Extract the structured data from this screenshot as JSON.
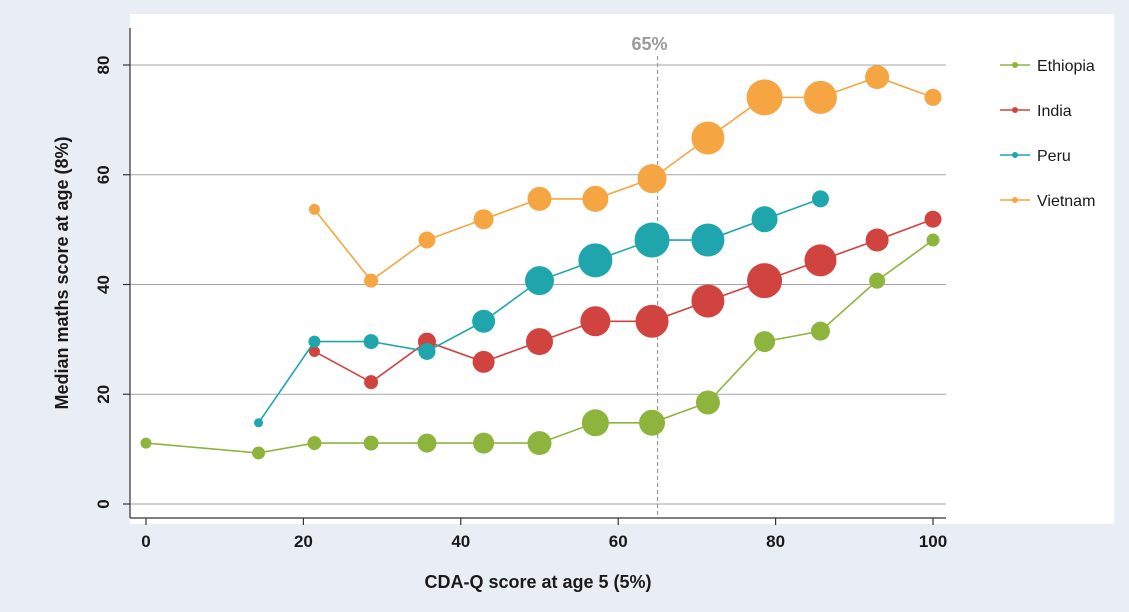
{
  "chart_data": {
    "type": "scatter",
    "xlabel": "CDA-Q score at age 5 (5%)",
    "ylabel": "Median maths score at age (8%)",
    "xlim": [
      0,
      100
    ],
    "ylim": [
      0,
      80
    ],
    "xticks": [
      "0",
      "20",
      "40",
      "60",
      "80",
      "100"
    ],
    "yticks": [
      "0",
      "20",
      "40",
      "60",
      "80"
    ],
    "grid": "horizontal",
    "legend_position": "right",
    "reference_line": {
      "x": 65,
      "label": "65%",
      "style": "dashed",
      "color": "#9a9a9a"
    },
    "series": [
      {
        "name": "Ethiopia",
        "color": "#8db53e",
        "points": [
          {
            "x": 0,
            "y": 11.1,
            "size": 1
          },
          {
            "x": 14.3,
            "y": 9.3,
            "size": 1.2
          },
          {
            "x": 21.4,
            "y": 11.1,
            "size": 1.3
          },
          {
            "x": 28.6,
            "y": 11.1,
            "size": 1.4
          },
          {
            "x": 35.7,
            "y": 11.1,
            "size": 1.8
          },
          {
            "x": 42.9,
            "y": 11.1,
            "size": 2.0
          },
          {
            "x": 50,
            "y": 11.1,
            "size": 2.3
          },
          {
            "x": 57.1,
            "y": 14.8,
            "size": 2.6
          },
          {
            "x": 64.3,
            "y": 14.8,
            "size": 2.5
          },
          {
            "x": 71.4,
            "y": 18.5,
            "size": 2.3
          },
          {
            "x": 78.6,
            "y": 29.6,
            "size": 2.0
          },
          {
            "x": 85.7,
            "y": 31.5,
            "size": 1.8
          },
          {
            "x": 92.9,
            "y": 40.7,
            "size": 1.5
          },
          {
            "x": 100,
            "y": 48.1,
            "size": 1.2
          }
        ]
      },
      {
        "name": "India",
        "color": "#d1433f",
        "points": [
          {
            "x": 21.4,
            "y": 27.8,
            "size": 1
          },
          {
            "x": 28.6,
            "y": 22.2,
            "size": 1.3
          },
          {
            "x": 35.7,
            "y": 29.6,
            "size": 1.7
          },
          {
            "x": 42.9,
            "y": 25.9,
            "size": 2.1
          },
          {
            "x": 50,
            "y": 29.6,
            "size": 2.6
          },
          {
            "x": 57.1,
            "y": 33.3,
            "size": 2.9
          },
          {
            "x": 64.3,
            "y": 33.3,
            "size": 3.2
          },
          {
            "x": 71.4,
            "y": 37.0,
            "size": 3.2
          },
          {
            "x": 78.6,
            "y": 40.7,
            "size": 3.4
          },
          {
            "x": 85.7,
            "y": 44.4,
            "size": 3.1
          },
          {
            "x": 92.9,
            "y": 48.1,
            "size": 2.2
          },
          {
            "x": 100,
            "y": 51.9,
            "size": 1.6
          }
        ]
      },
      {
        "name": "Peru",
        "color": "#1fa6ad",
        "points": [
          {
            "x": 14.3,
            "y": 14.8,
            "size": 0.8
          },
          {
            "x": 21.4,
            "y": 29.6,
            "size": 1.1
          },
          {
            "x": 28.6,
            "y": 29.6,
            "size": 1.4
          },
          {
            "x": 35.7,
            "y": 27.8,
            "size": 1.6
          },
          {
            "x": 42.9,
            "y": 33.3,
            "size": 2.2
          },
          {
            "x": 50,
            "y": 40.7,
            "size": 2.8
          },
          {
            "x": 57.1,
            "y": 44.4,
            "size": 3.3
          },
          {
            "x": 64.3,
            "y": 48.1,
            "size": 3.4
          },
          {
            "x": 71.4,
            "y": 48.1,
            "size": 3.2
          },
          {
            "x": 78.6,
            "y": 51.9,
            "size": 2.5
          },
          {
            "x": 85.7,
            "y": 55.6,
            "size": 1.6
          }
        ]
      },
      {
        "name": "Vietnam",
        "color": "#f5a541",
        "points": [
          {
            "x": 21.4,
            "y": 53.7,
            "size": 1
          },
          {
            "x": 28.6,
            "y": 40.7,
            "size": 1.3
          },
          {
            "x": 35.7,
            "y": 48.1,
            "size": 1.6
          },
          {
            "x": 42.9,
            "y": 51.9,
            "size": 1.9
          },
          {
            "x": 50,
            "y": 55.6,
            "size": 2.3
          },
          {
            "x": 57.1,
            "y": 55.6,
            "size": 2.5
          },
          {
            "x": 64.3,
            "y": 59.3,
            "size": 2.8
          },
          {
            "x": 71.4,
            "y": 66.7,
            "size": 3.2
          },
          {
            "x": 78.6,
            "y": 74.1,
            "size": 3.5
          },
          {
            "x": 85.7,
            "y": 74.1,
            "size": 3.2
          },
          {
            "x": 92.9,
            "y": 77.8,
            "size": 2.3
          },
          {
            "x": 100,
            "y": 74.1,
            "size": 1.6
          }
        ]
      }
    ]
  }
}
